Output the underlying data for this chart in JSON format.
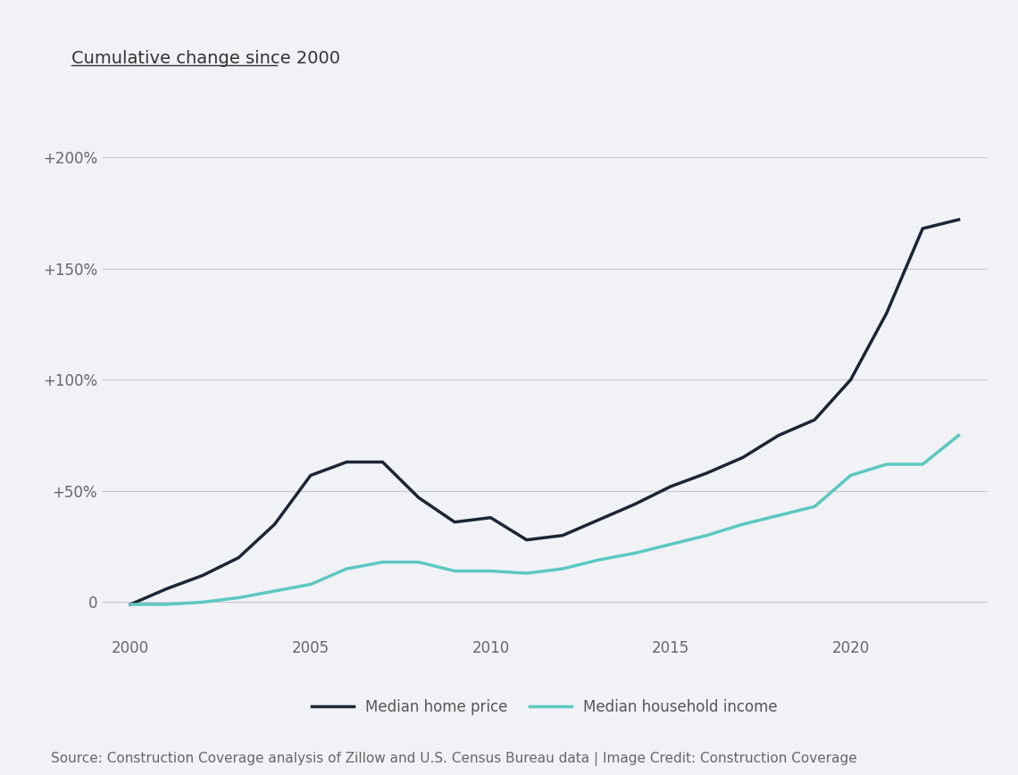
{
  "title": "Cumulative change since 2000",
  "source_text": "Source: Construction Coverage analysis of Zillow and U.S. Census Bureau data | Image Credit: Construction Coverage",
  "background_color": "#f0f2f5",
  "grid_color": "#c8c8c8",
  "home_price_color": "#1a2535",
  "income_color": "#5bc8c0",
  "legend_label_home": "Median home price",
  "legend_label_income": "Median household income",
  "years": [
    2000,
    2001,
    2002,
    2003,
    2004,
    2005,
    2006,
    2007,
    2008,
    2009,
    2010,
    2011,
    2012,
    2013,
    2014,
    2015,
    2016,
    2017,
    2018,
    2019,
    2020,
    2021,
    2022,
    2023
  ],
  "home_price": [
    -1,
    6,
    12,
    20,
    35,
    57,
    63,
    63,
    47,
    36,
    38,
    28,
    30,
    37,
    44,
    52,
    58,
    65,
    75,
    82,
    100,
    130,
    168,
    172
  ],
  "income": [
    -1,
    -1,
    0,
    2,
    5,
    8,
    15,
    18,
    18,
    14,
    14,
    13,
    15,
    19,
    22,
    26,
    30,
    35,
    39,
    43,
    57,
    62,
    62,
    75
  ],
  "ylim": [
    -15,
    215
  ],
  "yticks": [
    0,
    50,
    100,
    150,
    200
  ],
  "ytick_labels": [
    "0",
    "+50%",
    "+100%",
    "+150%",
    "+200%"
  ],
  "xticks": [
    2000,
    2005,
    2010,
    2015,
    2020
  ],
  "xlim": [
    1999.2,
    2023.8
  ],
  "title_fontsize": 14,
  "tick_fontsize": 12,
  "source_fontsize": 11,
  "legend_fontsize": 12
}
